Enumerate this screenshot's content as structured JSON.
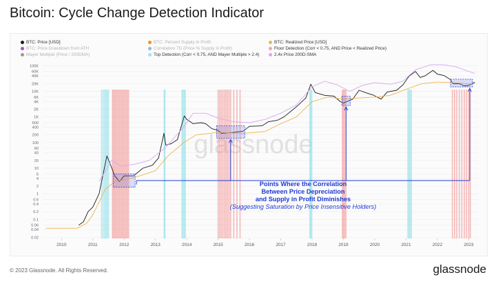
{
  "title": "Bitcoin: Cycle Change Detection Indicator",
  "watermark": "glassnode",
  "footer": "© 2023 Glassnode. All Rights Reserved.",
  "brand": "glassnode",
  "legend": [
    {
      "label": "BTC: Price [USD]",
      "color": "#1a1a1a",
      "faded": false
    },
    {
      "label": "BTC: Percent Supply in Profit",
      "color": "#f28c28",
      "faded": true
    },
    {
      "label": "BTC: Realized Price [USD]",
      "color": "#f0b44c",
      "faded": false
    },
    {
      "label": "BTC: Price Drawdown from ATH",
      "color": "#b04ccf",
      "faded": true
    },
    {
      "label": "Correlation 7D (Price % Supply in Profit)",
      "color": "#8fb8e8",
      "faded": true
    },
    {
      "label": "Floor Detection (Corr < 0.75, AND Price < Realized Price)",
      "color": "#f2a5a5",
      "faded": false
    },
    {
      "label": "Mayer Multiple (Price / 200DMA)",
      "color": "#9a9a9a",
      "faded": true
    },
    {
      "label": "Top Detection (Corr < 0.75, AND Mayer Multiple > 2.4)",
      "color": "#9fe3ec",
      "faded": false
    },
    {
      "label": "2.4x Price 200D-SMA",
      "color": "#d9a6f0",
      "faded": false
    }
  ],
  "annotation": {
    "line1": "Points Where the Correlation",
    "line2": "Between Price Depreciation",
    "line3": "and Supply in Profit Diminishes",
    "line4": "(Suggesting Saturation by Price Insensitive Holders)"
  },
  "chart_data": {
    "type": "line",
    "y_scale": "log",
    "x_ticks": [
      "2010",
      "2011",
      "2012",
      "2013",
      "2014",
      "2015",
      "2016",
      "2017",
      "2018",
      "2019",
      "2020",
      "2021",
      "2022",
      "2023"
    ],
    "y_ticks": [
      "100K",
      "60K",
      "40K",
      "20K",
      "10K",
      "6K",
      "4K",
      "2K",
      "1K",
      "600",
      "400",
      "200",
      "100",
      "60",
      "40",
      "20",
      "10",
      "6",
      "4",
      "2",
      "1",
      "0.6",
      "0.4",
      "0.2",
      "0.1",
      "0.06",
      "0.04",
      "0.02"
    ],
    "x_range": [
      2009.4,
      2023.3
    ],
    "y_range": [
      0.018,
      140000
    ],
    "series": [
      {
        "name": "BTC: Price [USD]",
        "color": "#1a1a1a",
        "points": [
          [
            2010.55,
            0.06
          ],
          [
            2010.7,
            0.08
          ],
          [
            2010.85,
            0.2
          ],
          [
            2011.0,
            0.3
          ],
          [
            2011.2,
            1
          ],
          [
            2011.3,
            4
          ],
          [
            2011.45,
            30
          ],
          [
            2011.55,
            15
          ],
          [
            2011.7,
            5
          ],
          [
            2011.85,
            3
          ],
          [
            2012.0,
            5
          ],
          [
            2012.3,
            5
          ],
          [
            2012.6,
            10
          ],
          [
            2012.9,
            13
          ],
          [
            2013.1,
            25
          ],
          [
            2013.27,
            230
          ],
          [
            2013.33,
            80
          ],
          [
            2013.5,
            90
          ],
          [
            2013.7,
            130
          ],
          [
            2013.92,
            1100
          ],
          [
            2014.0,
            800
          ],
          [
            2014.2,
            550
          ],
          [
            2014.45,
            600
          ],
          [
            2014.6,
            550
          ],
          [
            2014.8,
            350
          ],
          [
            2015.0,
            300
          ],
          [
            2015.1,
            230
          ],
          [
            2015.5,
            250
          ],
          [
            2015.8,
            280
          ],
          [
            2016.0,
            430
          ],
          [
            2016.4,
            450
          ],
          [
            2016.6,
            650
          ],
          [
            2016.9,
            750
          ],
          [
            2017.1,
            1000
          ],
          [
            2017.5,
            2500
          ],
          [
            2017.8,
            5500
          ],
          [
            2017.96,
            19000
          ],
          [
            2018.1,
            9000
          ],
          [
            2018.4,
            7000
          ],
          [
            2018.7,
            6500
          ],
          [
            2018.9,
            4000
          ],
          [
            2019.0,
            3500
          ],
          [
            2019.3,
            5000
          ],
          [
            2019.5,
            11000
          ],
          [
            2019.7,
            9000
          ],
          [
            2019.95,
            7200
          ],
          [
            2020.2,
            5000
          ],
          [
            2020.4,
            9500
          ],
          [
            2020.7,
            11000
          ],
          [
            2020.9,
            18000
          ],
          [
            2021.1,
            40000
          ],
          [
            2021.3,
            60000
          ],
          [
            2021.45,
            35000
          ],
          [
            2021.6,
            40000
          ],
          [
            2021.86,
            66000
          ],
          [
            2022.0,
            47000
          ],
          [
            2022.2,
            42000
          ],
          [
            2022.4,
            30000
          ],
          [
            2022.5,
            20000
          ],
          [
            2022.7,
            20000
          ],
          [
            2022.85,
            16500
          ],
          [
            2023.0,
            17000
          ],
          [
            2023.2,
            23000
          ]
        ]
      },
      {
        "name": "BTC: Realized Price [USD]",
        "color": "#f0b44c",
        "points": [
          [
            2009.5,
            0.045
          ],
          [
            2010.5,
            0.045
          ],
          [
            2010.8,
            0.07
          ],
          [
            2011.0,
            0.15
          ],
          [
            2011.4,
            1.5
          ],
          [
            2011.7,
            3
          ],
          [
            2012.0,
            3.5
          ],
          [
            2012.5,
            5
          ],
          [
            2013.0,
            8
          ],
          [
            2013.4,
            30
          ],
          [
            2013.9,
            100
          ],
          [
            2014.3,
            200
          ],
          [
            2015.0,
            250
          ],
          [
            2015.8,
            230
          ],
          [
            2016.5,
            270
          ],
          [
            2017.0,
            550
          ],
          [
            2017.5,
            1000
          ],
          [
            2018.0,
            4000
          ],
          [
            2018.5,
            6000
          ],
          [
            2019.0,
            5000
          ],
          [
            2019.5,
            5500
          ],
          [
            2020.0,
            6000
          ],
          [
            2020.5,
            7000
          ],
          [
            2021.0,
            12000
          ],
          [
            2021.5,
            20000
          ],
          [
            2022.0,
            23000
          ],
          [
            2022.5,
            22000
          ],
          [
            2023.0,
            19500
          ],
          [
            2023.2,
            20000
          ]
        ]
      },
      {
        "name": "2.4x Price 200D-SMA",
        "color": "#d9a6f0",
        "points": [
          [
            2011.2,
            3
          ],
          [
            2011.6,
            20
          ],
          [
            2011.9,
            12
          ],
          [
            2012.3,
            14
          ],
          [
            2012.8,
            20
          ],
          [
            2013.3,
            60
          ],
          [
            2013.9,
            400
          ],
          [
            2014.2,
            1400
          ],
          [
            2014.6,
            1400
          ],
          [
            2015.0,
            900
          ],
          [
            2015.5,
            650
          ],
          [
            2016.0,
            600
          ],
          [
            2016.5,
            800
          ],
          [
            2017.0,
            1400
          ],
          [
            2017.5,
            3000
          ],
          [
            2018.0,
            15000
          ],
          [
            2018.4,
            25000
          ],
          [
            2018.8,
            18000
          ],
          [
            2019.2,
            10000
          ],
          [
            2019.6,
            17000
          ],
          [
            2020.0,
            22000
          ],
          [
            2020.5,
            19000
          ],
          [
            2020.9,
            25000
          ],
          [
            2021.3,
            70000
          ],
          [
            2021.8,
            110000
          ],
          [
            2022.2,
            110000
          ],
          [
            2022.6,
            90000
          ],
          [
            2023.0,
            60000
          ],
          [
            2023.2,
            50000
          ]
        ]
      }
    ],
    "floor_detection_years": [
      2011.63,
      2011.66,
      2011.7,
      2011.74,
      2011.78,
      2011.82,
      2011.86,
      2011.9,
      2011.94,
      2011.98,
      2012.02,
      2012.06,
      2012.1,
      2012.14,
      2015.0,
      2015.05,
      2015.1,
      2015.15,
      2015.2,
      2015.25,
      2015.3,
      2015.35,
      2015.4,
      2015.5,
      2015.6,
      2015.7,
      2018.97,
      2019.0,
      2019.04,
      2019.08,
      2022.48,
      2022.55,
      2022.62,
      2022.7,
      2022.78,
      2022.86,
      2022.93,
      2023.0,
      2023.05
    ],
    "top_detection_years": [
      2011.28,
      2011.33,
      2011.38,
      2011.42,
      2011.46,
      2011.5,
      2013.28,
      2013.3,
      2013.85,
      2013.88,
      2013.92,
      2013.95,
      2017.93,
      2017.96,
      2017.99,
      2021.06,
      2021.1,
      2021.13,
      2021.17
    ],
    "highlight_boxes": [
      {
        "x": [
          2011.65,
          2012.35
        ],
        "y": [
          1.8,
          6.0
        ]
      },
      {
        "x": [
          2014.95,
          2015.85
        ],
        "y": [
          150,
          450
        ]
      },
      {
        "x": [
          2018.95,
          2019.22
        ],
        "y": [
          2800,
          6500
        ]
      },
      {
        "x": [
          2022.42,
          2023.12
        ],
        "y": [
          15000,
          30000
        ]
      }
    ]
  }
}
